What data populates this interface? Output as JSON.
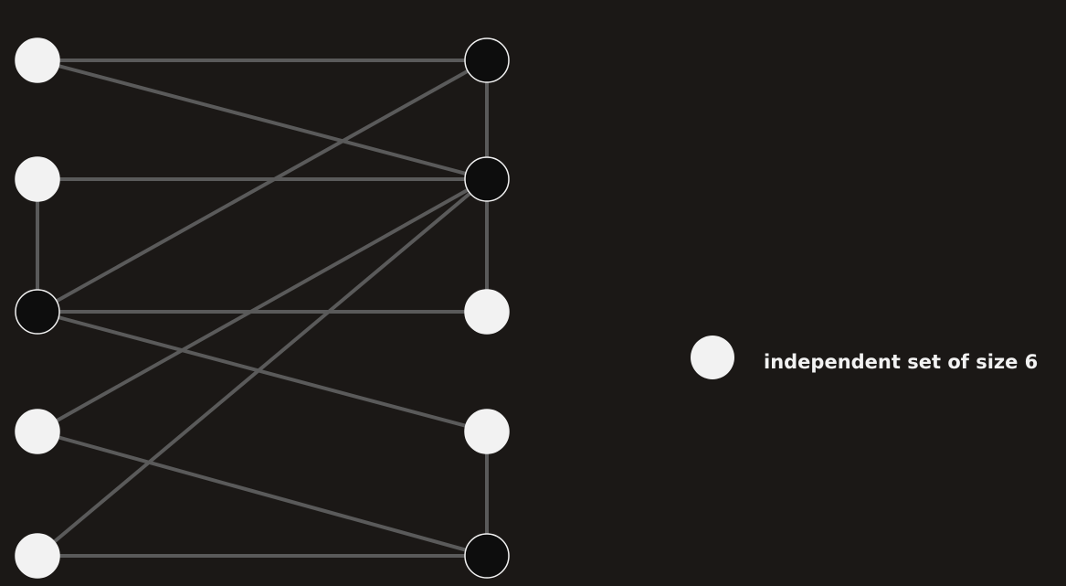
{
  "legend": {
    "label": "independent set of size 6",
    "marker_fill": "#f2f2f2"
  },
  "graph": {
    "colors": {
      "background": "#1b1816",
      "edge": "#5a5a5a",
      "in_set_fill": "#f2f2f2",
      "not_in_set_fill": "#0d0d0d",
      "node_stroke": "#f2f2f2"
    },
    "nodes": [
      {
        "id": "L1",
        "in_set": true
      },
      {
        "id": "L2",
        "in_set": true
      },
      {
        "id": "L3",
        "in_set": false
      },
      {
        "id": "L4",
        "in_set": true
      },
      {
        "id": "L5",
        "in_set": true
      },
      {
        "id": "R1",
        "in_set": false
      },
      {
        "id": "R2",
        "in_set": false
      },
      {
        "id": "R3",
        "in_set": true
      },
      {
        "id": "R4",
        "in_set": true
      },
      {
        "id": "R5",
        "in_set": false
      }
    ],
    "edges": [
      [
        "L1",
        "R1"
      ],
      [
        "L1",
        "R2"
      ],
      [
        "L2",
        "R2"
      ],
      [
        "L2",
        "L3"
      ],
      [
        "L3",
        "R1"
      ],
      [
        "L3",
        "R3"
      ],
      [
        "L3",
        "R4"
      ],
      [
        "L4",
        "R2"
      ],
      [
        "L4",
        "R5"
      ],
      [
        "L5",
        "R2"
      ],
      [
        "L5",
        "R5"
      ],
      [
        "R1",
        "R2"
      ],
      [
        "R2",
        "R3"
      ],
      [
        "R4",
        "R5"
      ]
    ]
  }
}
